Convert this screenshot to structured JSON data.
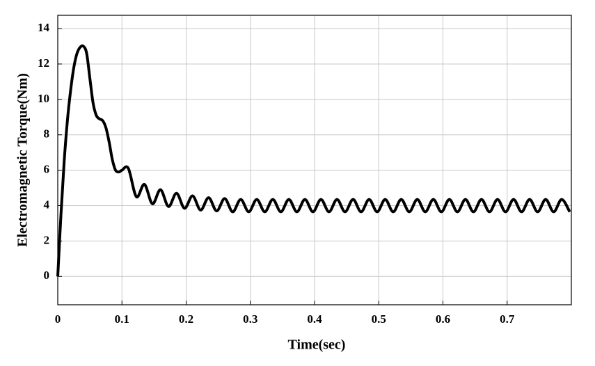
{
  "chart_data": {
    "type": "line",
    "x_label": "Time(sec)",
    "y_label": "Electromagnetic Torque(Nm)",
    "x": [
      0,
      0.005,
      0.01,
      0.015,
      0.02,
      0.025,
      0.03,
      0.035,
      0.04,
      0.045,
      0.05,
      0.055,
      0.06,
      0.065,
      0.07,
      0.075,
      0.08,
      0.085,
      0.09,
      0.095,
      0.1,
      0.11,
      0.1225,
      0.135,
      0.1475,
      0.16,
      0.1725,
      0.185,
      0.1975,
      0.21,
      0.2225,
      0.235,
      0.2475,
      0.26,
      0.2725,
      0.285,
      0.2975,
      0.31,
      0.3225,
      0.335,
      0.3475,
      0.36,
      0.3725,
      0.385,
      0.3975,
      0.41,
      0.4225,
      0.435,
      0.4475,
      0.46,
      0.4725,
      0.485,
      0.4975,
      0.51,
      0.5225,
      0.535,
      0.5475,
      0.56,
      0.5725,
      0.585,
      0.5975,
      0.61,
      0.6225,
      0.635,
      0.6475,
      0.66,
      0.6725,
      0.685,
      0.6975,
      0.71,
      0.7225,
      0.735,
      0.7475,
      0.76,
      0.7725,
      0.785,
      0.7975
    ],
    "values": [
      0,
      3.5,
      6.5,
      8.8,
      10.5,
      11.8,
      12.6,
      12.95,
      13.0,
      12.6,
      11.2,
      9.8,
      9.1,
      8.9,
      8.8,
      8.4,
      7.6,
      6.6,
      6.0,
      5.9,
      6.0,
      6.1,
      4.5,
      5.2,
      4.1,
      4.9,
      3.95,
      4.7,
      3.85,
      4.55,
      3.75,
      4.45,
      3.7,
      4.4,
      3.65,
      4.35,
      3.65,
      4.35,
      3.65,
      4.35,
      3.65,
      4.35,
      3.65,
      4.35,
      3.65,
      4.35,
      3.65,
      4.35,
      3.65,
      4.35,
      3.65,
      4.35,
      3.65,
      4.35,
      3.65,
      4.35,
      3.65,
      4.35,
      3.65,
      4.35,
      3.65,
      4.35,
      3.65,
      4.35,
      3.65,
      4.35,
      3.65,
      4.35,
      3.65,
      4.35,
      3.65,
      4.35,
      3.65,
      4.35,
      3.65,
      4.35,
      3.65
    ],
    "color": "#000000",
    "xlim": [
      0,
      0.8
    ],
    "xticks": [
      0,
      0.1,
      0.2,
      0.3,
      0.4,
      0.5,
      0.6,
      0.7
    ],
    "ylim": [
      -1.6,
      14.75
    ],
    "yticks": [
      0,
      2,
      4,
      6,
      8,
      10,
      12,
      14
    ],
    "grid": true
  }
}
